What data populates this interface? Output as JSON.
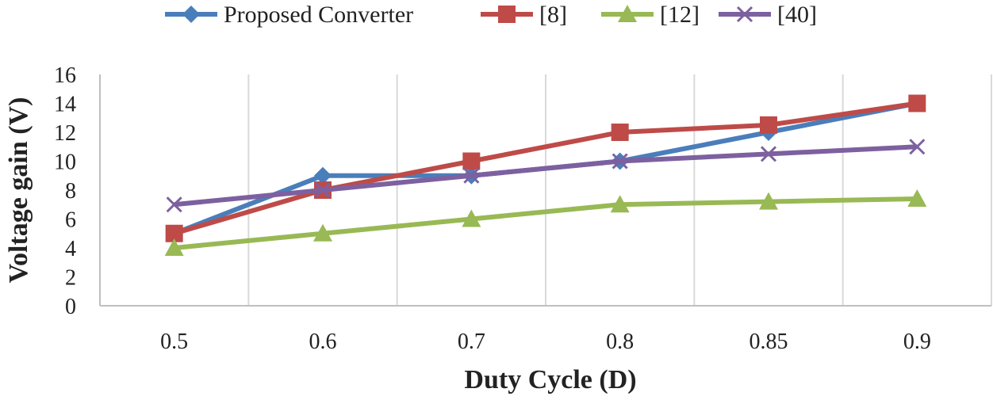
{
  "chart_data": {
    "type": "line",
    "title": "",
    "xlabel": "Duty Cycle (D)",
    "ylabel": "Voltage gain (V)",
    "categories": [
      "0.5",
      "0.6",
      "0.7",
      "0.8",
      "0.85",
      "0.9"
    ],
    "ylim": [
      0,
      16
    ],
    "y_ticks": [
      "0",
      "2",
      "4",
      "6",
      "8",
      "10",
      "12",
      "14",
      "16"
    ],
    "grid": "vertical",
    "legend_position": "top",
    "series": [
      {
        "name": "Proposed Converter",
        "color": "#4a7ebb",
        "marker": "diamond",
        "values": [
          5,
          9,
          9,
          10,
          12,
          14
        ]
      },
      {
        "name": "[8]",
        "color": "#be4b48",
        "marker": "square",
        "values": [
          5,
          8,
          10,
          12,
          12.5,
          14
        ]
      },
      {
        "name": "[12]",
        "color": "#98b954",
        "marker": "triangle",
        "values": [
          4,
          5,
          6,
          7,
          7.2,
          7.4
        ]
      },
      {
        "name": "[40]",
        "color": "#7d60a0",
        "marker": "x",
        "values": [
          7,
          8,
          9,
          10,
          10.5,
          11
        ]
      }
    ]
  },
  "colors": {
    "grid": "#d9d9d9",
    "axis": "#bfbfbf"
  }
}
